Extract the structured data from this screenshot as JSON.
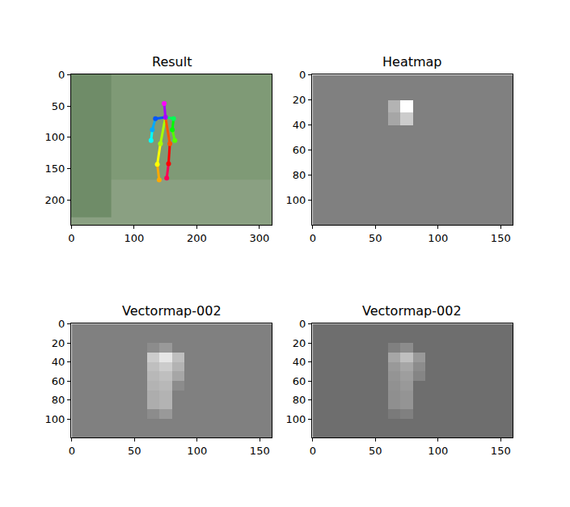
{
  "chart_data": [
    {
      "type": "scatter",
      "title": "Result",
      "xlim": [
        -0.5,
        319.5
      ],
      "ylim": [
        239.5,
        -0.5
      ],
      "xticks": [
        0,
        100,
        200,
        300
      ],
      "yticks": [
        0,
        50,
        100,
        150,
        200
      ],
      "keypoints": {
        "x": [
          148,
          150,
          134,
          129,
          127,
          163,
          161,
          165,
          142,
          137,
          140,
          157,
          155,
          152
        ],
        "y": [
          46,
          68,
          70,
          88,
          105,
          70,
          88,
          105,
          110,
          143,
          168,
          110,
          142,
          165
        ],
        "colors": [
          "#ff00ff",
          "#aa00ff",
          "#0055ff",
          "#00aaff",
          "#00ffff",
          "#00ff55",
          "#00ff00",
          "#55ff00",
          "#aaff00",
          "#ffff00",
          "#ffaa00",
          "#ff5500",
          "#ff0000",
          "#ff0055"
        ]
      },
      "limbs": [
        {
          "x": [
            150,
            148
          ],
          "y": [
            68,
            46
          ],
          "color": "#aa00ff"
        },
        {
          "x": [
            150,
            134
          ],
          "y": [
            68,
            70
          ],
          "color": "#0055ff"
        },
        {
          "x": [
            134,
            129
          ],
          "y": [
            70,
            88
          ],
          "color": "#00aaff"
        },
        {
          "x": [
            129,
            127
          ],
          "y": [
            88,
            105
          ],
          "color": "#00ffff"
        },
        {
          "x": [
            150,
            163
          ],
          "y": [
            68,
            70
          ],
          "color": "#00ff55"
        },
        {
          "x": [
            163,
            161
          ],
          "y": [
            70,
            88
          ],
          "color": "#00ff00"
        },
        {
          "x": [
            161,
            165
          ],
          "y": [
            88,
            105
          ],
          "color": "#55ff00"
        },
        {
          "x": [
            150,
            142
          ],
          "y": [
            68,
            110
          ],
          "color": "#aaff00"
        },
        {
          "x": [
            142,
            137
          ],
          "y": [
            110,
            143
          ],
          "color": "#ffff00"
        },
        {
          "x": [
            137,
            140
          ],
          "y": [
            143,
            168
          ],
          "color": "#ffaa00"
        },
        {
          "x": [
            150,
            157
          ],
          "y": [
            68,
            110
          ],
          "color": "#ff5500"
        },
        {
          "x": [
            157,
            155
          ],
          "y": [
            110,
            142
          ],
          "color": "#ff0000"
        },
        {
          "x": [
            155,
            152
          ],
          "y": [
            142,
            165
          ],
          "color": "#ff0055"
        }
      ]
    },
    {
      "type": "heatmap",
      "title": "Heatmap",
      "xlim": [
        -0.5,
        159.5
      ],
      "ylim": [
        119.5,
        -0.5
      ],
      "xticks": [
        0,
        50,
        100,
        150
      ],
      "yticks": [
        0,
        20,
        40,
        60,
        80,
        100
      ],
      "zlim": [
        0,
        1
      ],
      "x": [
        5,
        15,
        25,
        35,
        45,
        55,
        65,
        75,
        85,
        95,
        105,
        115,
        125,
        135,
        145,
        155
      ],
      "y": [
        5,
        15,
        25,
        35,
        45,
        55,
        65,
        75,
        85,
        95,
        105,
        115
      ],
      "z": [
        [
          0.5,
          0.5,
          0.5,
          0.5,
          0.5,
          0.5,
          0.5,
          0.5,
          0.5,
          0.5,
          0.5,
          0.5,
          0.5,
          0.5,
          0.5,
          0.5
        ],
        [
          0.5,
          0.5,
          0.5,
          0.5,
          0.5,
          0.5,
          0.5,
          0.5,
          0.5,
          0.5,
          0.5,
          0.5,
          0.5,
          0.5,
          0.5,
          0.5
        ],
        [
          0.5,
          0.5,
          0.5,
          0.5,
          0.5,
          0.5,
          0.7,
          1.0,
          0.5,
          0.5,
          0.5,
          0.5,
          0.5,
          0.5,
          0.5,
          0.5
        ],
        [
          0.5,
          0.5,
          0.5,
          0.5,
          0.5,
          0.5,
          0.65,
          0.8,
          0.5,
          0.5,
          0.5,
          0.5,
          0.5,
          0.5,
          0.5,
          0.5
        ],
        [
          0.5,
          0.5,
          0.5,
          0.5,
          0.5,
          0.5,
          0.5,
          0.5,
          0.5,
          0.5,
          0.5,
          0.5,
          0.5,
          0.5,
          0.5,
          0.5
        ],
        [
          0.5,
          0.5,
          0.5,
          0.5,
          0.5,
          0.5,
          0.5,
          0.5,
          0.5,
          0.5,
          0.5,
          0.5,
          0.5,
          0.5,
          0.5,
          0.5
        ],
        [
          0.5,
          0.5,
          0.5,
          0.5,
          0.5,
          0.5,
          0.5,
          0.5,
          0.5,
          0.5,
          0.5,
          0.5,
          0.5,
          0.5,
          0.5,
          0.5
        ],
        [
          0.5,
          0.5,
          0.5,
          0.5,
          0.5,
          0.5,
          0.5,
          0.5,
          0.5,
          0.5,
          0.5,
          0.5,
          0.5,
          0.5,
          0.5,
          0.5
        ],
        [
          0.5,
          0.5,
          0.5,
          0.5,
          0.5,
          0.5,
          0.5,
          0.5,
          0.5,
          0.5,
          0.5,
          0.5,
          0.5,
          0.5,
          0.5,
          0.5
        ],
        [
          0.5,
          0.5,
          0.5,
          0.5,
          0.5,
          0.5,
          0.5,
          0.5,
          0.5,
          0.5,
          0.5,
          0.5,
          0.5,
          0.5,
          0.5,
          0.5
        ],
        [
          0.5,
          0.5,
          0.5,
          0.5,
          0.5,
          0.5,
          0.5,
          0.5,
          0.5,
          0.5,
          0.5,
          0.5,
          0.5,
          0.5,
          0.5,
          0.5
        ],
        [
          0.5,
          0.5,
          0.5,
          0.5,
          0.5,
          0.5,
          0.5,
          0.5,
          0.5,
          0.5,
          0.5,
          0.5,
          0.5,
          0.5,
          0.5,
          0.5
        ]
      ]
    },
    {
      "type": "heatmap",
      "title": "Vectormap-002",
      "xlim": [
        -0.5,
        159.5
      ],
      "ylim": [
        119.5,
        -0.5
      ],
      "xticks": [
        0,
        50,
        100,
        150
      ],
      "yticks": [
        0,
        20,
        40,
        60,
        80,
        100
      ],
      "zlim": [
        0,
        1
      ],
      "x": [
        5,
        15,
        25,
        35,
        45,
        55,
        65,
        75,
        85,
        95,
        105,
        115,
        125,
        135,
        145,
        155
      ],
      "y": [
        5,
        15,
        25,
        35,
        45,
        55,
        65,
        75,
        85,
        95,
        105,
        115
      ],
      "z": [
        [
          0.5,
          0.5,
          0.5,
          0.5,
          0.5,
          0.5,
          0.5,
          0.5,
          0.5,
          0.5,
          0.5,
          0.5,
          0.5,
          0.5,
          0.5,
          0.5
        ],
        [
          0.5,
          0.5,
          0.5,
          0.5,
          0.5,
          0.5,
          0.5,
          0.5,
          0.5,
          0.5,
          0.5,
          0.5,
          0.5,
          0.5,
          0.5,
          0.5
        ],
        [
          0.5,
          0.5,
          0.5,
          0.5,
          0.5,
          0.5,
          0.55,
          0.6,
          0.5,
          0.5,
          0.5,
          0.5,
          0.5,
          0.5,
          0.5,
          0.5
        ],
        [
          0.5,
          0.5,
          0.5,
          0.5,
          0.5,
          0.5,
          0.8,
          0.9,
          0.75,
          0.5,
          0.5,
          0.5,
          0.5,
          0.5,
          0.5,
          0.5
        ],
        [
          0.5,
          0.5,
          0.5,
          0.5,
          0.5,
          0.5,
          0.75,
          0.8,
          0.7,
          0.5,
          0.5,
          0.5,
          0.5,
          0.5,
          0.5,
          0.5
        ],
        [
          0.5,
          0.5,
          0.5,
          0.5,
          0.5,
          0.5,
          0.72,
          0.75,
          0.65,
          0.5,
          0.5,
          0.5,
          0.5,
          0.5,
          0.5,
          0.5
        ],
        [
          0.5,
          0.5,
          0.5,
          0.5,
          0.5,
          0.5,
          0.7,
          0.72,
          0.55,
          0.5,
          0.5,
          0.5,
          0.5,
          0.5,
          0.5,
          0.5
        ],
        [
          0.5,
          0.5,
          0.5,
          0.5,
          0.5,
          0.5,
          0.68,
          0.7,
          0.5,
          0.5,
          0.5,
          0.5,
          0.5,
          0.5,
          0.5,
          0.5
        ],
        [
          0.5,
          0.5,
          0.5,
          0.5,
          0.5,
          0.5,
          0.68,
          0.7,
          0.5,
          0.5,
          0.5,
          0.5,
          0.5,
          0.5,
          0.5,
          0.5
        ],
        [
          0.5,
          0.5,
          0.5,
          0.5,
          0.5,
          0.5,
          0.55,
          0.6,
          0.5,
          0.5,
          0.5,
          0.5,
          0.5,
          0.5,
          0.5,
          0.5
        ],
        [
          0.5,
          0.5,
          0.5,
          0.5,
          0.5,
          0.5,
          0.5,
          0.5,
          0.5,
          0.5,
          0.5,
          0.5,
          0.5,
          0.5,
          0.5,
          0.5
        ],
        [
          0.5,
          0.5,
          0.5,
          0.5,
          0.5,
          0.5,
          0.5,
          0.5,
          0.5,
          0.5,
          0.5,
          0.5,
          0.5,
          0.5,
          0.5,
          0.5
        ]
      ]
    },
    {
      "type": "heatmap",
      "title": "Vectormap-002",
      "xlim": [
        -0.5,
        159.5
      ],
      "ylim": [
        119.5,
        -0.5
      ],
      "xticks": [
        0,
        50,
        100,
        150
      ],
      "yticks": [
        0,
        20,
        40,
        60,
        80,
        100
      ],
      "zlim": [
        0,
        1
      ],
      "x": [
        5,
        15,
        25,
        35,
        45,
        55,
        65,
        75,
        85,
        95,
        105,
        115,
        125,
        135,
        145,
        155
      ],
      "y": [
        5,
        15,
        25,
        35,
        45,
        55,
        65,
        75,
        85,
        95,
        105,
        115
      ],
      "z": [
        [
          0.43,
          0.43,
          0.43,
          0.43,
          0.43,
          0.43,
          0.43,
          0.43,
          0.43,
          0.43,
          0.43,
          0.43,
          0.43,
          0.43,
          0.43,
          0.43
        ],
        [
          0.43,
          0.43,
          0.43,
          0.43,
          0.43,
          0.43,
          0.43,
          0.43,
          0.43,
          0.43,
          0.43,
          0.43,
          0.43,
          0.43,
          0.43,
          0.43
        ],
        [
          0.43,
          0.43,
          0.43,
          0.43,
          0.43,
          0.43,
          0.5,
          0.55,
          0.43,
          0.43,
          0.43,
          0.43,
          0.43,
          0.43,
          0.43,
          0.43
        ],
        [
          0.43,
          0.43,
          0.43,
          0.43,
          0.43,
          0.43,
          0.65,
          0.75,
          0.6,
          0.43,
          0.43,
          0.43,
          0.43,
          0.43,
          0.43,
          0.43
        ],
        [
          0.43,
          0.43,
          0.43,
          0.43,
          0.43,
          0.43,
          0.6,
          0.65,
          0.55,
          0.43,
          0.43,
          0.43,
          0.43,
          0.43,
          0.43,
          0.43
        ],
        [
          0.43,
          0.43,
          0.43,
          0.43,
          0.43,
          0.43,
          0.58,
          0.62,
          0.52,
          0.43,
          0.43,
          0.43,
          0.43,
          0.43,
          0.43,
          0.43
        ],
        [
          0.43,
          0.43,
          0.43,
          0.43,
          0.43,
          0.43,
          0.57,
          0.6,
          0.43,
          0.43,
          0.43,
          0.43,
          0.43,
          0.43,
          0.43,
          0.43
        ],
        [
          0.43,
          0.43,
          0.43,
          0.43,
          0.43,
          0.43,
          0.56,
          0.58,
          0.43,
          0.43,
          0.43,
          0.43,
          0.43,
          0.43,
          0.43,
          0.43
        ],
        [
          0.43,
          0.43,
          0.43,
          0.43,
          0.43,
          0.43,
          0.56,
          0.58,
          0.43,
          0.43,
          0.43,
          0.43,
          0.43,
          0.43,
          0.43,
          0.43
        ],
        [
          0.43,
          0.43,
          0.43,
          0.43,
          0.43,
          0.43,
          0.48,
          0.5,
          0.43,
          0.43,
          0.43,
          0.43,
          0.43,
          0.43,
          0.43,
          0.43
        ],
        [
          0.43,
          0.43,
          0.43,
          0.43,
          0.43,
          0.43,
          0.43,
          0.43,
          0.43,
          0.43,
          0.43,
          0.43,
          0.43,
          0.43,
          0.43,
          0.43
        ],
        [
          0.43,
          0.43,
          0.43,
          0.43,
          0.43,
          0.43,
          0.43,
          0.43,
          0.43,
          0.43,
          0.43,
          0.43,
          0.43,
          0.43,
          0.43,
          0.43
        ]
      ]
    }
  ]
}
